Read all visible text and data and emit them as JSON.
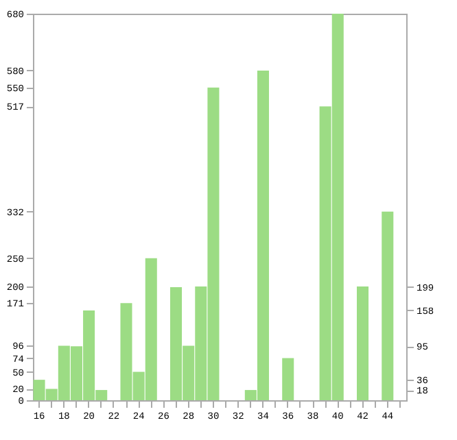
{
  "chart_data": {
    "type": "bar",
    "categories": [
      "16",
      null,
      "18",
      null,
      "20",
      null,
      "22",
      null,
      "24",
      null,
      "26",
      null,
      "28",
      null,
      "30",
      null,
      "32",
      null,
      "34",
      null,
      "36",
      null,
      "38",
      null,
      "40",
      null,
      "42",
      null,
      "44",
      null
    ],
    "values": [
      36,
      20,
      96,
      95,
      158,
      18,
      0,
      171,
      50,
      250,
      0,
      199,
      96,
      200,
      550,
      0,
      0,
      18,
      580,
      0,
      74,
      0,
      0,
      517,
      680,
      0,
      200,
      0,
      332,
      0
    ],
    "color": "#9cdc84",
    "ylim": [
      0,
      680
    ],
    "yticks": [
      0,
      20,
      50,
      74,
      96,
      171,
      200,
      250,
      332,
      517,
      550,
      580,
      680
    ],
    "y2lim": [
      0,
      680
    ],
    "y2ticks": [
      18,
      36,
      95,
      158,
      199
    ],
    "grid": false
  }
}
